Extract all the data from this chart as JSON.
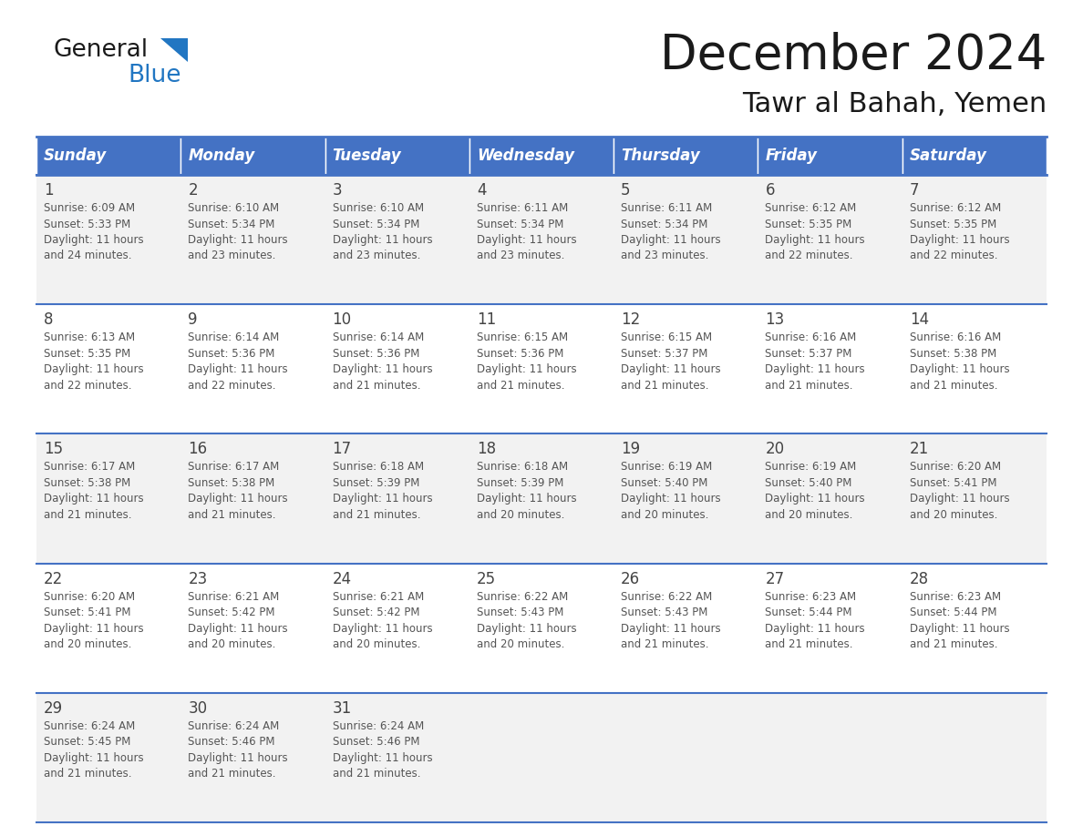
{
  "title": "December 2024",
  "subtitle": "Tawr al Bahah, Yemen",
  "header_color": "#4472C4",
  "header_text_color": "#FFFFFF",
  "bg_color": "#FFFFFF",
  "cell_bg_even": "#F2F2F2",
  "cell_bg_odd": "#FFFFFF",
  "text_color": "#444444",
  "body_text_color": "#555555",
  "separator_color": "#4472C4",
  "days_of_week": [
    "Sunday",
    "Monday",
    "Tuesday",
    "Wednesday",
    "Thursday",
    "Friday",
    "Saturday"
  ],
  "weeks": [
    [
      {
        "day": 1,
        "sunrise": "6:09 AM",
        "sunset": "5:33 PM",
        "daylight": "11 hours",
        "daylight2": "and 24 minutes."
      },
      {
        "day": 2,
        "sunrise": "6:10 AM",
        "sunset": "5:34 PM",
        "daylight": "11 hours",
        "daylight2": "and 23 minutes."
      },
      {
        "day": 3,
        "sunrise": "6:10 AM",
        "sunset": "5:34 PM",
        "daylight": "11 hours",
        "daylight2": "and 23 minutes."
      },
      {
        "day": 4,
        "sunrise": "6:11 AM",
        "sunset": "5:34 PM",
        "daylight": "11 hours",
        "daylight2": "and 23 minutes."
      },
      {
        "day": 5,
        "sunrise": "6:11 AM",
        "sunset": "5:34 PM",
        "daylight": "11 hours",
        "daylight2": "and 23 minutes."
      },
      {
        "day": 6,
        "sunrise": "6:12 AM",
        "sunset": "5:35 PM",
        "daylight": "11 hours",
        "daylight2": "and 22 minutes."
      },
      {
        "day": 7,
        "sunrise": "6:12 AM",
        "sunset": "5:35 PM",
        "daylight": "11 hours",
        "daylight2": "and 22 minutes."
      }
    ],
    [
      {
        "day": 8,
        "sunrise": "6:13 AM",
        "sunset": "5:35 PM",
        "daylight": "11 hours",
        "daylight2": "and 22 minutes."
      },
      {
        "day": 9,
        "sunrise": "6:14 AM",
        "sunset": "5:36 PM",
        "daylight": "11 hours",
        "daylight2": "and 22 minutes."
      },
      {
        "day": 10,
        "sunrise": "6:14 AM",
        "sunset": "5:36 PM",
        "daylight": "11 hours",
        "daylight2": "and 21 minutes."
      },
      {
        "day": 11,
        "sunrise": "6:15 AM",
        "sunset": "5:36 PM",
        "daylight": "11 hours",
        "daylight2": "and 21 minutes."
      },
      {
        "day": 12,
        "sunrise": "6:15 AM",
        "sunset": "5:37 PM",
        "daylight": "11 hours",
        "daylight2": "and 21 minutes."
      },
      {
        "day": 13,
        "sunrise": "6:16 AM",
        "sunset": "5:37 PM",
        "daylight": "11 hours",
        "daylight2": "and 21 minutes."
      },
      {
        "day": 14,
        "sunrise": "6:16 AM",
        "sunset": "5:38 PM",
        "daylight": "11 hours",
        "daylight2": "and 21 minutes."
      }
    ],
    [
      {
        "day": 15,
        "sunrise": "6:17 AM",
        "sunset": "5:38 PM",
        "daylight": "11 hours",
        "daylight2": "and 21 minutes."
      },
      {
        "day": 16,
        "sunrise": "6:17 AM",
        "sunset": "5:38 PM",
        "daylight": "11 hours",
        "daylight2": "and 21 minutes."
      },
      {
        "day": 17,
        "sunrise": "6:18 AM",
        "sunset": "5:39 PM",
        "daylight": "11 hours",
        "daylight2": "and 21 minutes."
      },
      {
        "day": 18,
        "sunrise": "6:18 AM",
        "sunset": "5:39 PM",
        "daylight": "11 hours",
        "daylight2": "and 20 minutes."
      },
      {
        "day": 19,
        "sunrise": "6:19 AM",
        "sunset": "5:40 PM",
        "daylight": "11 hours",
        "daylight2": "and 20 minutes."
      },
      {
        "day": 20,
        "sunrise": "6:19 AM",
        "sunset": "5:40 PM",
        "daylight": "11 hours",
        "daylight2": "and 20 minutes."
      },
      {
        "day": 21,
        "sunrise": "6:20 AM",
        "sunset": "5:41 PM",
        "daylight": "11 hours",
        "daylight2": "and 20 minutes."
      }
    ],
    [
      {
        "day": 22,
        "sunrise": "6:20 AM",
        "sunset": "5:41 PM",
        "daylight": "11 hours",
        "daylight2": "and 20 minutes."
      },
      {
        "day": 23,
        "sunrise": "6:21 AM",
        "sunset": "5:42 PM",
        "daylight": "11 hours",
        "daylight2": "and 20 minutes."
      },
      {
        "day": 24,
        "sunrise": "6:21 AM",
        "sunset": "5:42 PM",
        "daylight": "11 hours",
        "daylight2": "and 20 minutes."
      },
      {
        "day": 25,
        "sunrise": "6:22 AM",
        "sunset": "5:43 PM",
        "daylight": "11 hours",
        "daylight2": "and 20 minutes."
      },
      {
        "day": 26,
        "sunrise": "6:22 AM",
        "sunset": "5:43 PM",
        "daylight": "11 hours",
        "daylight2": "and 21 minutes."
      },
      {
        "day": 27,
        "sunrise": "6:23 AM",
        "sunset": "5:44 PM",
        "daylight": "11 hours",
        "daylight2": "and 21 minutes."
      },
      {
        "day": 28,
        "sunrise": "6:23 AM",
        "sunset": "5:44 PM",
        "daylight": "11 hours",
        "daylight2": "and 21 minutes."
      }
    ],
    [
      {
        "day": 29,
        "sunrise": "6:24 AM",
        "sunset": "5:45 PM",
        "daylight": "11 hours",
        "daylight2": "and 21 minutes."
      },
      {
        "day": 30,
        "sunrise": "6:24 AM",
        "sunset": "5:46 PM",
        "daylight": "11 hours",
        "daylight2": "and 21 minutes."
      },
      {
        "day": 31,
        "sunrise": "6:24 AM",
        "sunset": "5:46 PM",
        "daylight": "11 hours",
        "daylight2": "and 21 minutes."
      },
      null,
      null,
      null,
      null
    ]
  ],
  "logo_color_general": "#1a1a1a",
  "logo_color_blue": "#2176C2",
  "logo_triangle_color": "#2176C2"
}
